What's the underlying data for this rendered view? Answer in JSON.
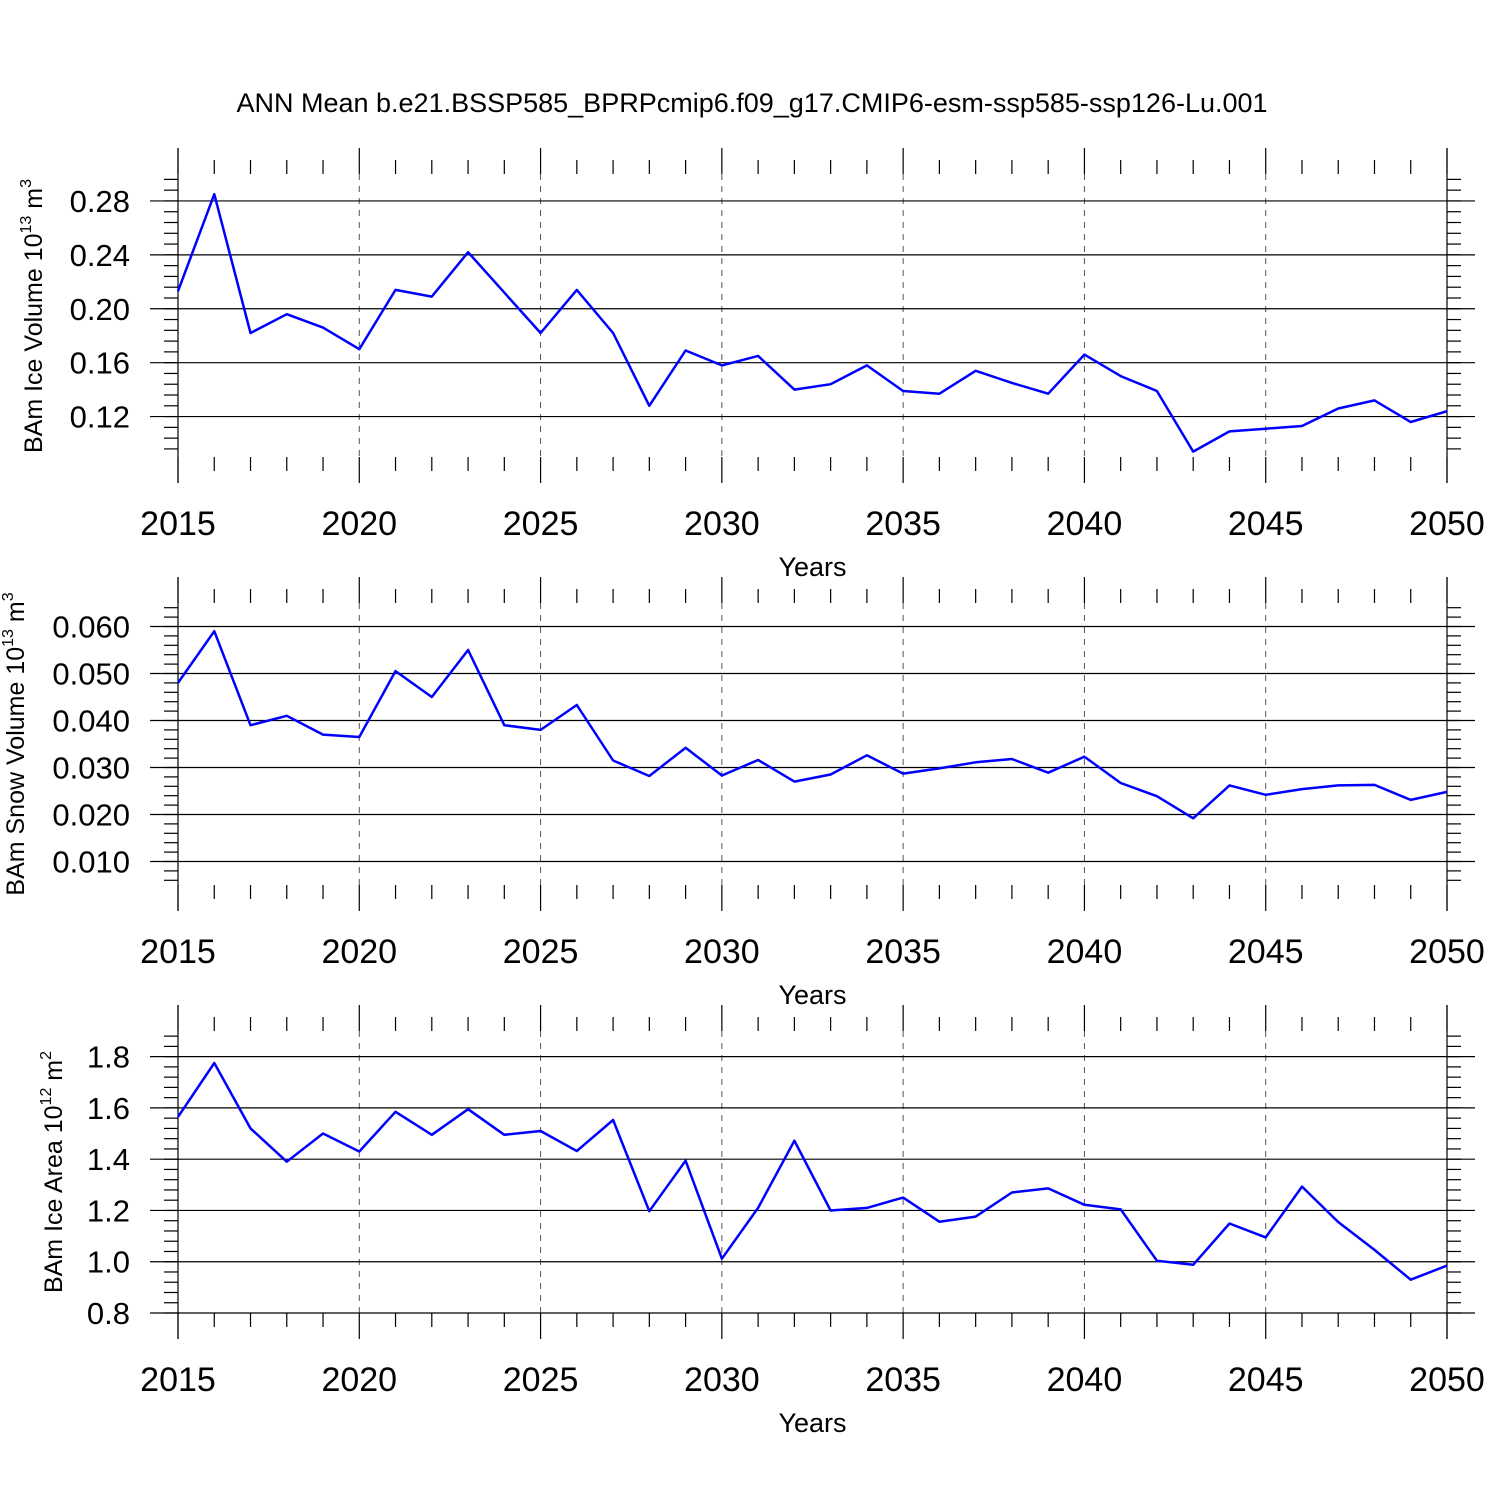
{
  "chart_data": {
    "title": "ANN Mean b.e21.BSSP585_BPRPcmip6.f09_g17.CMIP6-esm-ssp585-ssp126-Lu.001",
    "panels": [
      {
        "type": "line",
        "ylabel": {
          "text": "BAm Ice Volume 10",
          "exp": "13",
          "unit": " m",
          "unit_exp": "3"
        },
        "xlabel": "Years",
        "xlim": [
          2015,
          2050
        ],
        "ylim": [
          0.09,
          0.3
        ],
        "yticks": [
          0.12,
          0.16,
          0.2,
          0.24,
          0.28
        ],
        "ytick_labels": [
          "0.12",
          "0.16",
          "0.20",
          "0.24",
          "0.28"
        ],
        "xticks": [
          2015,
          2020,
          2025,
          2030,
          2035,
          2040,
          2045,
          2050
        ],
        "xtick_labels": [
          "2015",
          "2020",
          "2025",
          "2030",
          "2035",
          "2040",
          "2045",
          "2050"
        ],
        "series": [
          {
            "name": "BAm Ice Volume",
            "color": "#0000ff",
            "x": [
              2015,
              2016,
              2017,
              2018,
              2019,
              2020,
              2021,
              2022,
              2023,
              2024,
              2025,
              2026,
              2027,
              2028,
              2029,
              2030,
              2031,
              2032,
              2033,
              2034,
              2035,
              2036,
              2037,
              2038,
              2039,
              2040,
              2041,
              2042,
              2043,
              2044,
              2045,
              2046,
              2047,
              2048,
              2049,
              2050
            ],
            "values": [
              0.213,
              0.285,
              0.182,
              0.196,
              0.186,
              0.17,
              0.214,
              0.209,
              0.242,
              0.212,
              0.182,
              0.214,
              0.182,
              0.128,
              0.169,
              0.158,
              0.165,
              0.14,
              0.144,
              0.158,
              0.139,
              0.137,
              0.154,
              0.145,
              0.137,
              0.166,
              0.15,
              0.139,
              0.094,
              0.109,
              0.111,
              0.113,
              0.126,
              0.132,
              0.116,
              0.124
            ]
          }
        ]
      },
      {
        "type": "line",
        "ylabel": {
          "text": "BAm Snow Volume 10",
          "exp": "13",
          "unit": " m",
          "unit_exp": "3"
        },
        "xlabel": "Years",
        "xlim": [
          2015,
          2050
        ],
        "ylim": [
          0.005,
          0.065
        ],
        "yticks": [
          0.01,
          0.02,
          0.03,
          0.04,
          0.05,
          0.06
        ],
        "ytick_labels": [
          "0.010",
          "0.020",
          "0.030",
          "0.040",
          "0.050",
          "0.060"
        ],
        "xticks": [
          2015,
          2020,
          2025,
          2030,
          2035,
          2040,
          2045,
          2050
        ],
        "xtick_labels": [
          "2015",
          "2020",
          "2025",
          "2030",
          "2035",
          "2040",
          "2045",
          "2050"
        ],
        "series": [
          {
            "name": "BAm Snow Volume",
            "color": "#0000ff",
            "x": [
              2015,
              2016,
              2017,
              2018,
              2019,
              2020,
              2021,
              2022,
              2023,
              2024,
              2025,
              2026,
              2027,
              2028,
              2029,
              2030,
              2031,
              2032,
              2033,
              2034,
              2035,
              2036,
              2037,
              2038,
              2039,
              2040,
              2041,
              2042,
              2043,
              2044,
              2045,
              2046,
              2047,
              2048,
              2049,
              2050
            ],
            "values": [
              0.048,
              0.059,
              0.039,
              0.041,
              0.037,
              0.0365,
              0.0505,
              0.045,
              0.055,
              0.039,
              0.038,
              0.0433,
              0.0315,
              0.0282,
              0.0342,
              0.0283,
              0.0316,
              0.027,
              0.0285,
              0.0326,
              0.0287,
              0.0298,
              0.0311,
              0.0318,
              0.0289,
              0.0323,
              0.0267,
              0.0239,
              0.0192,
              0.0262,
              0.0242,
              0.0254,
              0.0262,
              0.0263,
              0.0231,
              0.0248
            ]
          }
        ]
      },
      {
        "type": "line",
        "ylabel": {
          "text": "BAm Ice Area 10",
          "exp": "12",
          "unit": " m",
          "unit_exp": "2"
        },
        "xlabel": "Years",
        "xlim": [
          2015,
          2050
        ],
        "ylim": [
          0.8,
          1.9
        ],
        "yticks": [
          0.8,
          1.0,
          1.2,
          1.4,
          1.6,
          1.8
        ],
        "ytick_labels": [
          "0.8",
          "1.0",
          "1.2",
          "1.4",
          "1.6",
          "1.8"
        ],
        "xticks": [
          2015,
          2020,
          2025,
          2030,
          2035,
          2040,
          2045,
          2050
        ],
        "xtick_labels": [
          "2015",
          "2020",
          "2025",
          "2030",
          "2035",
          "2040",
          "2045",
          "2050"
        ],
        "series": [
          {
            "name": "BAm Ice Area",
            "color": "#0000ff",
            "x": [
              2015,
              2016,
              2017,
              2018,
              2019,
              2020,
              2021,
              2022,
              2023,
              2024,
              2025,
              2026,
              2027,
              2028,
              2029,
              2030,
              2031,
              2032,
              2033,
              2034,
              2035,
              2036,
              2037,
              2038,
              2039,
              2040,
              2041,
              2042,
              2043,
              2044,
              2045,
              2046,
              2047,
              2048,
              2049,
              2050
            ],
            "values": [
              1.565,
              1.775,
              1.52,
              1.39,
              1.5,
              1.43,
              1.585,
              1.495,
              1.595,
              1.495,
              1.51,
              1.432,
              1.553,
              1.197,
              1.394,
              1.012,
              1.21,
              1.472,
              1.2,
              1.21,
              1.25,
              1.156,
              1.176,
              1.27,
              1.286,
              1.222,
              1.204,
              1.004,
              0.988,
              1.149,
              1.095,
              1.293,
              1.155,
              1.046,
              0.93,
              0.985
            ]
          }
        ]
      }
    ]
  }
}
